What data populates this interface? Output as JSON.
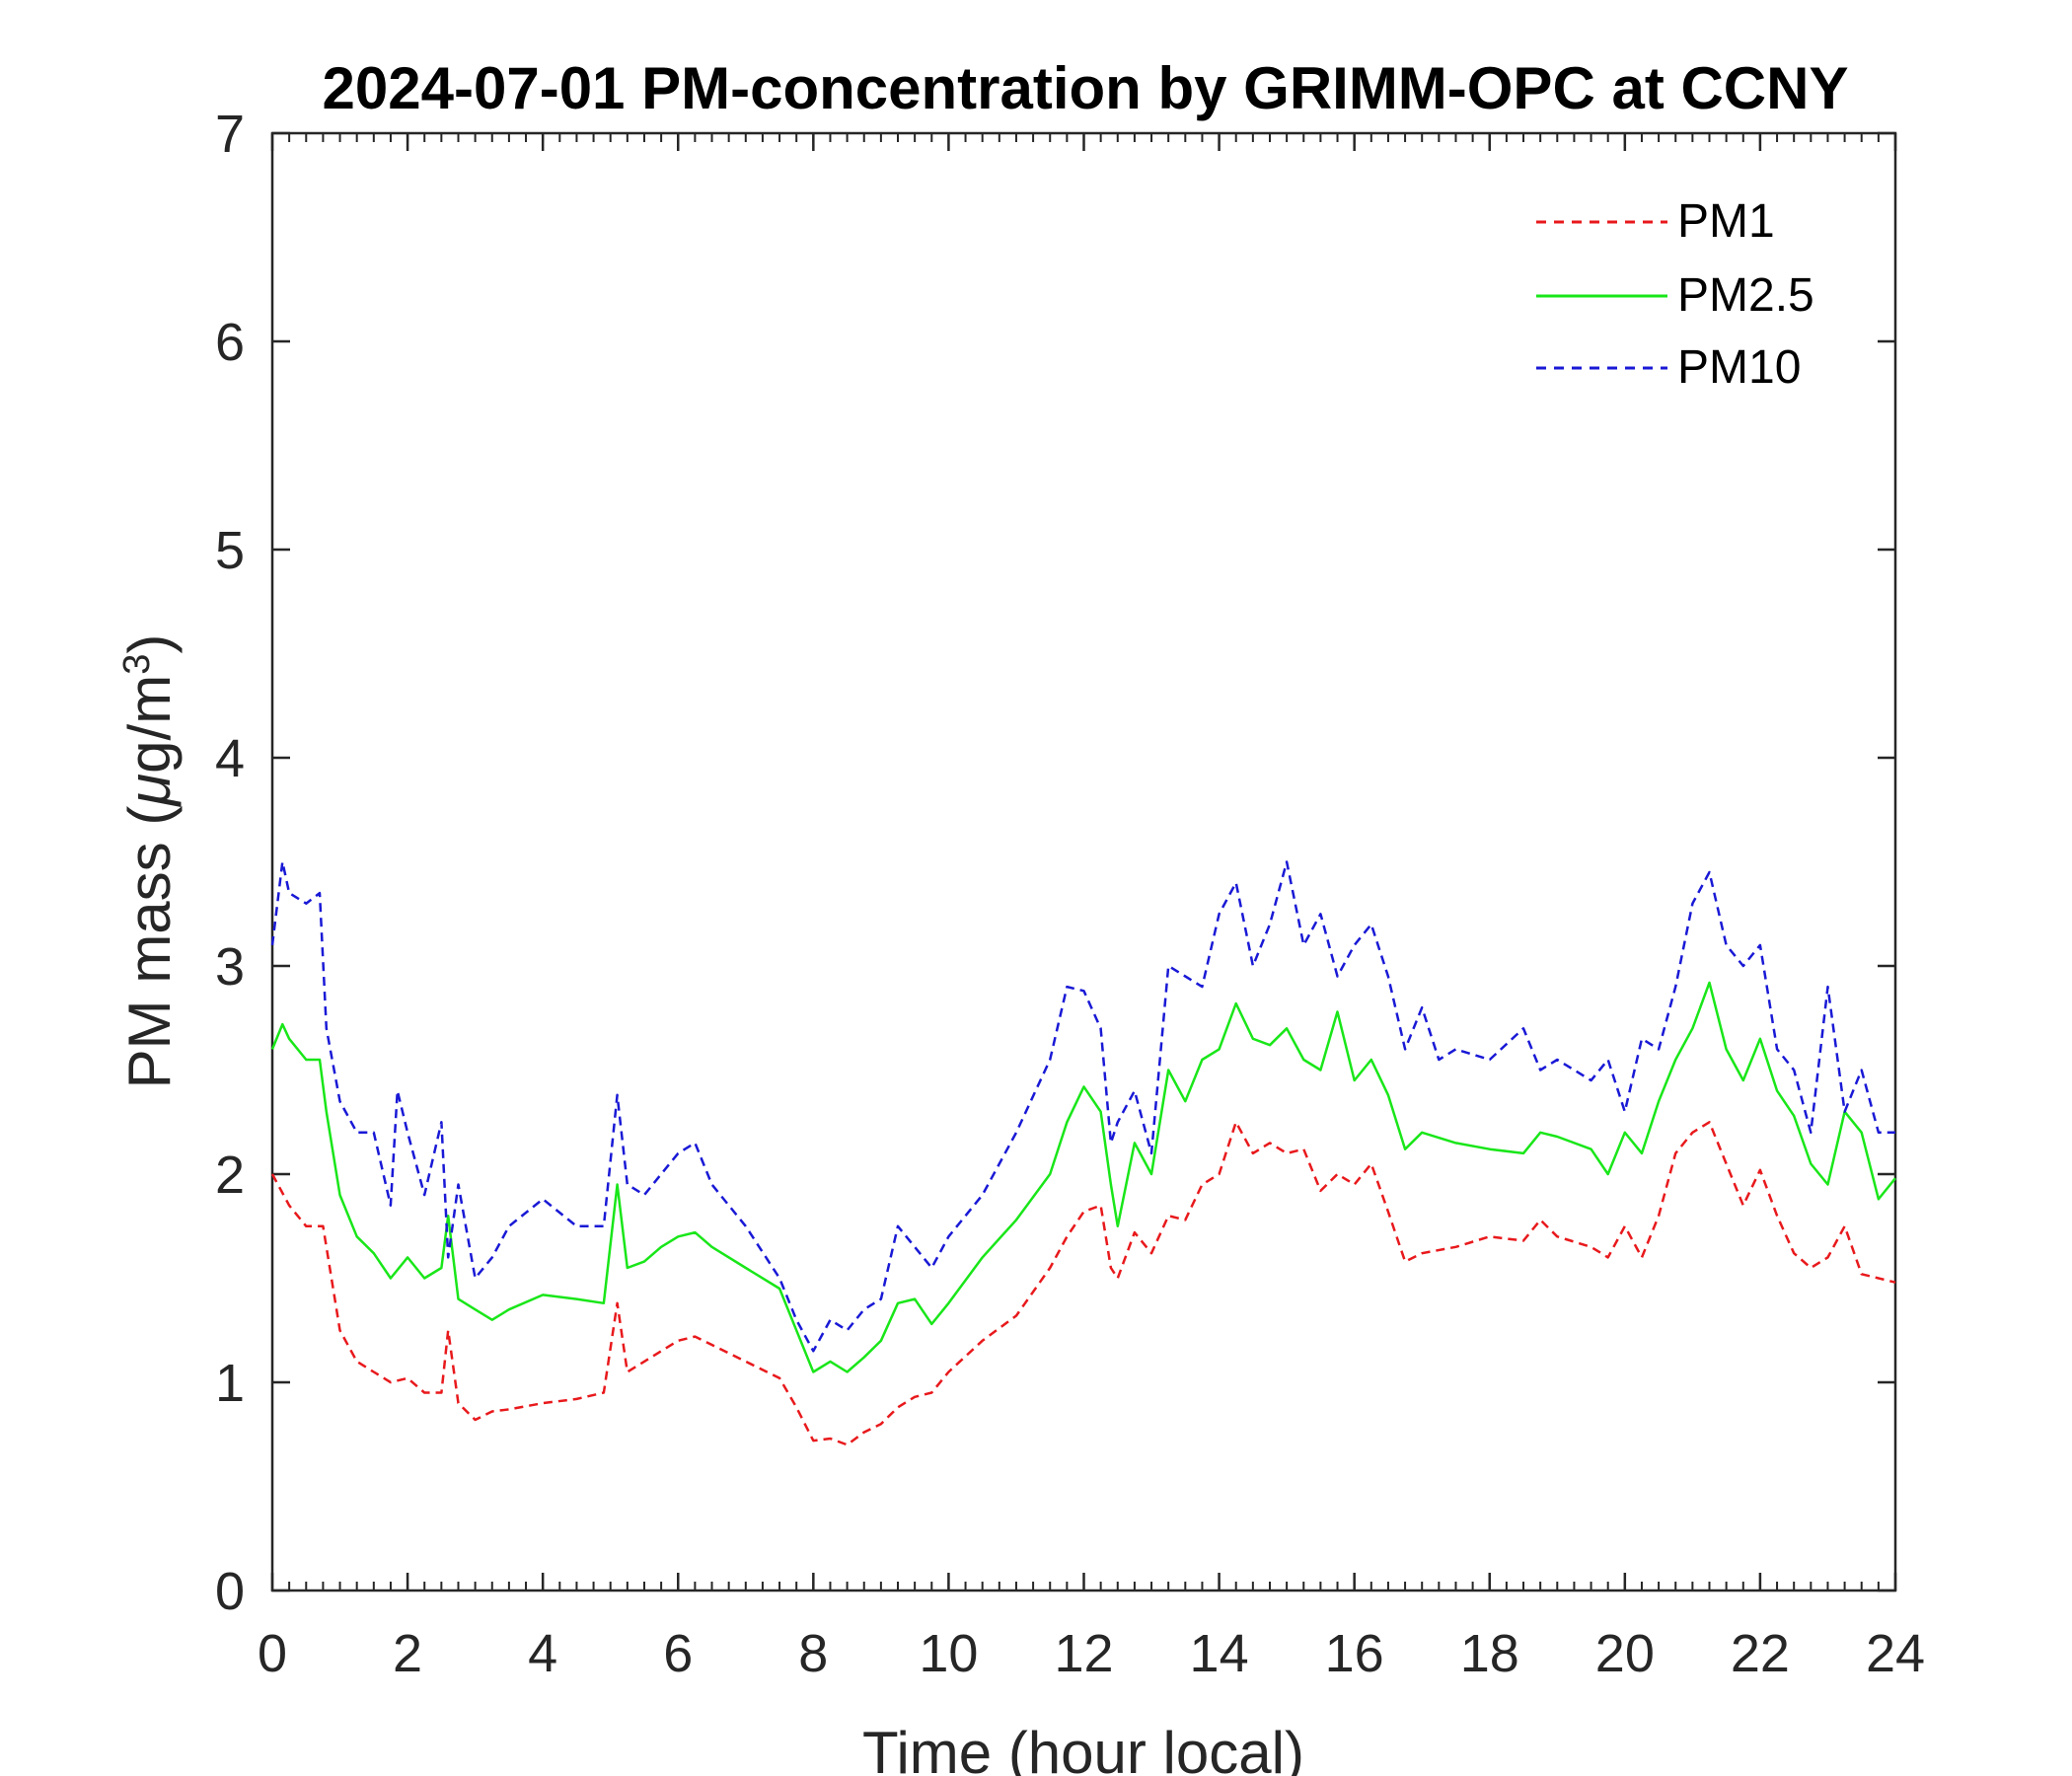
{
  "chart_data": {
    "type": "line",
    "title": "2024-07-01 PM-concentration by GRIMM-OPC at CCNY",
    "xlabel": "Time (hour local)",
    "ylabel_main": "PM mass (",
    "ylabel_mu": "μ",
    "ylabel_unit": "g/m",
    "ylabel_sup": "3",
    "ylabel_close": ")",
    "xlim": [
      0,
      24
    ],
    "ylim": [
      0,
      7
    ],
    "xticks": [
      0,
      2,
      4,
      6,
      8,
      10,
      12,
      14,
      16,
      18,
      20,
      22,
      24
    ],
    "yticks": [
      0,
      1,
      2,
      3,
      4,
      5,
      6,
      7
    ],
    "legend_position": "top-right",
    "series": [
      {
        "name": "PM1",
        "color": "#e8191c",
        "style": "dashed",
        "x": [
          0,
          0.25,
          0.5,
          0.75,
          1.0,
          1.25,
          1.5,
          1.75,
          2.0,
          2.25,
          2.5,
          2.6,
          2.75,
          3.0,
          3.25,
          3.5,
          4.0,
          4.5,
          4.9,
          5.1,
          5.25,
          5.5,
          5.75,
          6.0,
          6.25,
          6.5,
          7.0,
          7.5,
          7.75,
          8.0,
          8.25,
          8.5,
          8.75,
          9.0,
          9.25,
          9.5,
          9.75,
          10.0,
          10.5,
          11.0,
          11.5,
          11.75,
          12.0,
          12.25,
          12.4,
          12.5,
          12.75,
          13.0,
          13.25,
          13.5,
          13.75,
          14.0,
          14.25,
          14.5,
          14.75,
          15.0,
          15.25,
          15.5,
          15.75,
          16.0,
          16.25,
          16.5,
          16.75,
          17.0,
          17.5,
          18.0,
          18.5,
          18.75,
          19.0,
          19.5,
          19.75,
          20.0,
          20.25,
          20.5,
          20.75,
          21.0,
          21.25,
          21.5,
          21.75,
          22.0,
          22.25,
          22.5,
          22.75,
          23.0,
          23.25,
          23.5,
          23.75,
          24.0
        ],
        "values": [
          2.0,
          1.85,
          1.75,
          1.75,
          1.25,
          1.1,
          1.05,
          1.0,
          1.02,
          0.95,
          0.95,
          1.25,
          0.9,
          0.82,
          0.86,
          0.87,
          0.9,
          0.92,
          0.95,
          1.38,
          1.05,
          1.1,
          1.15,
          1.2,
          1.22,
          1.18,
          1.1,
          1.02,
          0.88,
          0.72,
          0.73,
          0.7,
          0.76,
          0.8,
          0.88,
          0.93,
          0.95,
          1.05,
          1.2,
          1.32,
          1.55,
          1.7,
          1.82,
          1.85,
          1.55,
          1.5,
          1.72,
          1.62,
          1.8,
          1.78,
          1.95,
          2.0,
          2.25,
          2.1,
          2.15,
          2.1,
          2.12,
          1.92,
          2.0,
          1.95,
          2.05,
          1.82,
          1.58,
          1.62,
          1.65,
          1.7,
          1.68,
          1.78,
          1.7,
          1.65,
          1.6,
          1.75,
          1.6,
          1.8,
          2.1,
          2.2,
          2.25,
          2.05,
          1.85,
          2.02,
          1.8,
          1.62,
          1.55,
          1.6,
          1.75,
          1.52,
          1.5,
          1.48
        ]
      },
      {
        "name": "PM2.5",
        "color": "#19e619",
        "style": "solid",
        "x": [
          0,
          0.15,
          0.25,
          0.5,
          0.7,
          0.8,
          1.0,
          1.25,
          1.5,
          1.75,
          2.0,
          2.25,
          2.5,
          2.6,
          2.75,
          3.0,
          3.25,
          3.5,
          4.0,
          4.5,
          4.9,
          5.1,
          5.25,
          5.5,
          5.75,
          6.0,
          6.25,
          6.5,
          7.0,
          7.5,
          7.75,
          8.0,
          8.25,
          8.5,
          8.75,
          9.0,
          9.25,
          9.5,
          9.75,
          10.0,
          10.5,
          11.0,
          11.5,
          11.75,
          12.0,
          12.25,
          12.4,
          12.5,
          12.75,
          13.0,
          13.25,
          13.5,
          13.75,
          14.0,
          14.25,
          14.5,
          14.75,
          15.0,
          15.25,
          15.5,
          15.75,
          16.0,
          16.25,
          16.5,
          16.75,
          17.0,
          17.5,
          18.0,
          18.5,
          18.75,
          19.0,
          19.5,
          19.75,
          20.0,
          20.25,
          20.5,
          20.75,
          21.0,
          21.25,
          21.5,
          21.75,
          22.0,
          22.25,
          22.5,
          22.75,
          23.0,
          23.25,
          23.5,
          23.75,
          24.0
        ],
        "values": [
          2.6,
          2.72,
          2.65,
          2.55,
          2.55,
          2.3,
          1.9,
          1.7,
          1.62,
          1.5,
          1.6,
          1.5,
          1.55,
          1.8,
          1.4,
          1.35,
          1.3,
          1.35,
          1.42,
          1.4,
          1.38,
          1.95,
          1.55,
          1.58,
          1.65,
          1.7,
          1.72,
          1.65,
          1.55,
          1.45,
          1.25,
          1.05,
          1.1,
          1.05,
          1.12,
          1.2,
          1.38,
          1.4,
          1.28,
          1.38,
          1.6,
          1.78,
          2.0,
          2.25,
          2.42,
          2.3,
          1.95,
          1.75,
          2.15,
          2.0,
          2.5,
          2.35,
          2.55,
          2.6,
          2.82,
          2.65,
          2.62,
          2.7,
          2.55,
          2.5,
          2.78,
          2.45,
          2.55,
          2.38,
          2.12,
          2.2,
          2.15,
          2.12,
          2.1,
          2.2,
          2.18,
          2.12,
          2.0,
          2.2,
          2.1,
          2.35,
          2.55,
          2.7,
          2.92,
          2.6,
          2.45,
          2.65,
          2.4,
          2.28,
          2.05,
          1.95,
          2.3,
          2.2,
          1.88,
          1.98
        ]
      },
      {
        "name": "PM10",
        "color": "#1919d6",
        "style": "dashed",
        "x": [
          0,
          0.15,
          0.25,
          0.5,
          0.7,
          0.8,
          1.0,
          1.25,
          1.5,
          1.75,
          1.85,
          2.0,
          2.25,
          2.5,
          2.6,
          2.75,
          3.0,
          3.25,
          3.5,
          4.0,
          4.5,
          4.9,
          5.1,
          5.25,
          5.5,
          5.75,
          6.0,
          6.25,
          6.5,
          7.0,
          7.5,
          7.75,
          8.0,
          8.25,
          8.5,
          8.75,
          9.0,
          9.25,
          9.5,
          9.75,
          10.0,
          10.5,
          11.0,
          11.5,
          11.75,
          12.0,
          12.25,
          12.4,
          12.5,
          12.75,
          13.0,
          13.25,
          13.5,
          13.75,
          14.0,
          14.25,
          14.5,
          14.75,
          15.0,
          15.25,
          15.5,
          15.75,
          16.0,
          16.25,
          16.5,
          16.75,
          17.0,
          17.25,
          17.5,
          18.0,
          18.5,
          18.75,
          19.0,
          19.5,
          19.75,
          20.0,
          20.25,
          20.5,
          20.75,
          21.0,
          21.25,
          21.5,
          21.75,
          22.0,
          22.25,
          22.5,
          22.75,
          23.0,
          23.25,
          23.5,
          23.75,
          24.0
        ],
        "values": [
          3.1,
          3.5,
          3.35,
          3.3,
          3.35,
          2.7,
          2.35,
          2.2,
          2.2,
          1.85,
          2.4,
          2.2,
          1.9,
          2.25,
          1.6,
          1.95,
          1.5,
          1.6,
          1.75,
          1.88,
          1.75,
          1.75,
          2.38,
          1.95,
          1.9,
          2.0,
          2.1,
          2.15,
          1.95,
          1.75,
          1.5,
          1.3,
          1.15,
          1.3,
          1.25,
          1.35,
          1.4,
          1.75,
          1.65,
          1.55,
          1.7,
          1.9,
          2.2,
          2.55,
          2.9,
          2.88,
          2.7,
          2.15,
          2.25,
          2.4,
          2.1,
          3.0,
          2.95,
          2.9,
          3.25,
          3.4,
          3.0,
          3.2,
          3.5,
          3.1,
          3.25,
          2.95,
          3.1,
          3.2,
          2.95,
          2.6,
          2.8,
          2.55,
          2.6,
          2.55,
          2.7,
          2.5,
          2.55,
          2.45,
          2.55,
          2.3,
          2.65,
          2.6,
          2.9,
          3.3,
          3.45,
          3.1,
          3.0,
          3.1,
          2.6,
          2.5,
          2.2,
          2.9,
          2.3,
          2.5,
          2.2,
          2.2
        ]
      }
    ]
  }
}
